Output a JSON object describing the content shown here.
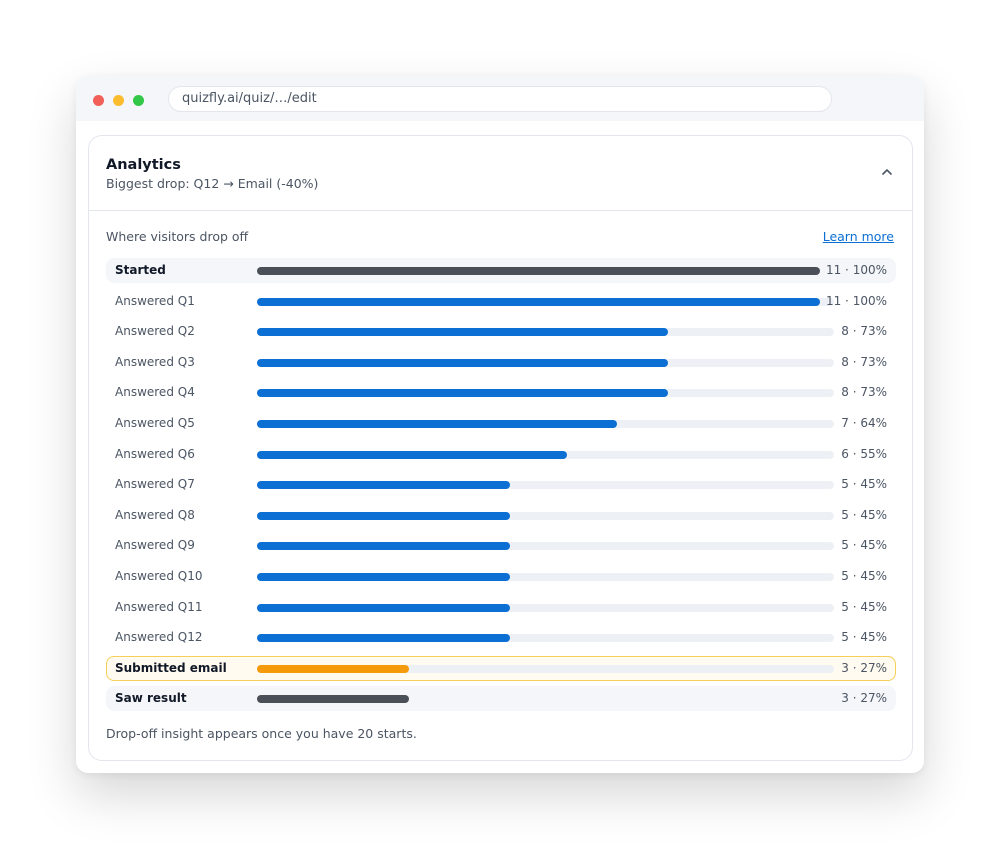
{
  "browser": {
    "url": "quizfly.ai/quiz/…/edit"
  },
  "analytics": {
    "title": "Analytics",
    "subtitle": "Biggest drop: Q12 → Email (-40%)",
    "section_label": "Where visitors drop off",
    "learn_more": "Learn more",
    "footnote": "Drop-off insight appears once you have 20 starts.",
    "funnel": [
      {
        "label": "Started",
        "count": "11",
        "percent": "100%",
        "fraction": 1.0,
        "style": "emphasis"
      },
      {
        "label": "Answered Q1",
        "count": "11",
        "percent": "100%",
        "fraction": 1.0,
        "style": "normal"
      },
      {
        "label": "Answered Q2",
        "count": "8",
        "percent": "73%",
        "fraction": 0.73,
        "style": "normal"
      },
      {
        "label": "Answered Q3",
        "count": "8",
        "percent": "73%",
        "fraction": 0.73,
        "style": "normal"
      },
      {
        "label": "Answered Q4",
        "count": "8",
        "percent": "73%",
        "fraction": 0.73,
        "style": "normal"
      },
      {
        "label": "Answered Q5",
        "count": "7",
        "percent": "64%",
        "fraction": 0.64,
        "style": "normal"
      },
      {
        "label": "Answered Q6",
        "count": "6",
        "percent": "55%",
        "fraction": 0.55,
        "style": "normal"
      },
      {
        "label": "Answered Q7",
        "count": "5",
        "percent": "45%",
        "fraction": 0.45,
        "style": "normal"
      },
      {
        "label": "Answered Q8",
        "count": "5",
        "percent": "45%",
        "fraction": 0.45,
        "style": "normal"
      },
      {
        "label": "Answered Q9",
        "count": "5",
        "percent": "45%",
        "fraction": 0.45,
        "style": "normal"
      },
      {
        "label": "Answered Q10",
        "count": "5",
        "percent": "45%",
        "fraction": 0.45,
        "style": "normal"
      },
      {
        "label": "Answered Q11",
        "count": "5",
        "percent": "45%",
        "fraction": 0.45,
        "style": "normal"
      },
      {
        "label": "Answered Q12",
        "count": "5",
        "percent": "45%",
        "fraction": 0.45,
        "style": "normal"
      },
      {
        "label": "Submitted email",
        "count": "3",
        "percent": "27%",
        "fraction": 0.27,
        "style": "highlight"
      },
      {
        "label": "Saw result",
        "count": "3",
        "percent": "27%",
        "fraction": 0.27,
        "style": "emphasis"
      }
    ]
  },
  "colors": {
    "accent_blue": "#0b6fd3",
    "highlight_orange": "#f59a0b",
    "dark_bar": "#4b5058"
  },
  "icons": {
    "collapse": "chevron-up-icon"
  }
}
